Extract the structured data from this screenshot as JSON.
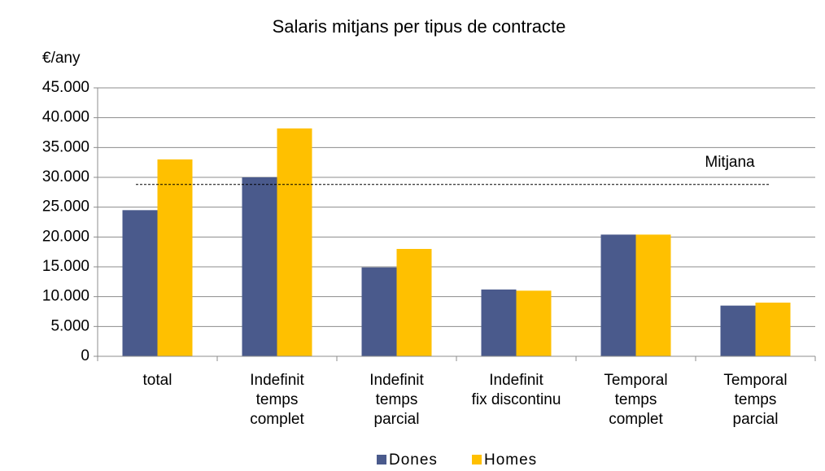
{
  "chart_data": {
    "type": "bar",
    "title": "Salaris mitjans per tipus de contracte",
    "y_label": "€/any",
    "categories": [
      "total",
      "Indefinit\ntemps\ncomplet",
      "Indefinit\ntemps\nparcial",
      "Indefinit\nfix discontinu",
      "Temporal\ntemps\ncomplet",
      "Temporal\ntemps\nparcial"
    ],
    "series": [
      {
        "name": "Dones",
        "color": "#4a5a8c",
        "values": [
          24500,
          30000,
          14900,
          11200,
          20400,
          8500
        ]
      },
      {
        "name": "Homes",
        "color": "#ffc000",
        "values": [
          33000,
          38200,
          18000,
          11000,
          20400,
          9000
        ]
      }
    ],
    "reference_line": {
      "label": "Mitjana",
      "value": 28800
    },
    "ylim": [
      0,
      45000
    ],
    "yticks": [
      0,
      {
        "value": 5000,
        "label": "5.000"
      },
      {
        "value": 10000,
        "label": "10.000"
      },
      {
        "value": 15000,
        "label": "15.000"
      },
      {
        "value": 20000,
        "label": "20.000"
      },
      {
        "value": 25000,
        "label": "25.000"
      },
      {
        "value": 30000,
        "label": "30.000"
      },
      {
        "value": 35000,
        "label": "35.000"
      },
      {
        "value": 40000,
        "label": "40.000"
      },
      {
        "value": 45000,
        "label": "45.000"
      }
    ],
    "grid": true,
    "legend": "bottom"
  }
}
